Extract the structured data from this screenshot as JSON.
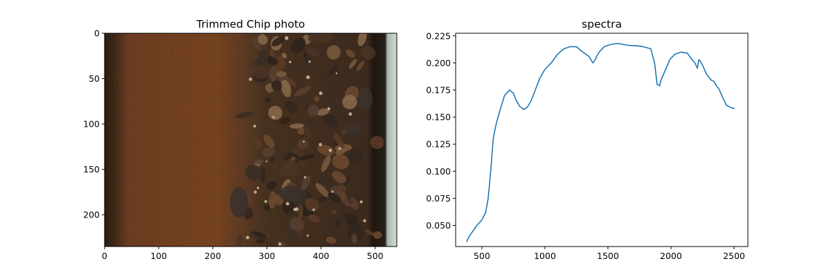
{
  "chart_data": [
    {
      "type": "image",
      "title": "Trimmed Chip photo",
      "xlim": [
        0,
        540
      ],
      "ylim": [
        235,
        0
      ],
      "xticks": [
        0,
        100,
        200,
        300,
        400,
        500
      ],
      "yticks": [
        0,
        50,
        100,
        150,
        200
      ],
      "xtick_labels": [
        "0",
        "100",
        "200",
        "300",
        "400",
        "500"
      ],
      "ytick_labels": [
        "0",
        "50",
        "100",
        "150",
        "200"
      ],
      "image_colors": {
        "left_fines": "#6b3a1f",
        "right_chips": "#3f2a1c",
        "frame_dark": "#2a1c12",
        "tray_edge": "#a8b8b0"
      }
    },
    {
      "type": "line",
      "title": "spectra",
      "xlim": [
        292,
        2610
      ],
      "ylim": [
        0.0305,
        0.2274
      ],
      "xticks": [
        500,
        1000,
        1500,
        2000,
        2500
      ],
      "yticks": [
        0.05,
        0.075,
        0.1,
        0.125,
        0.15,
        0.175,
        0.2,
        0.225
      ],
      "xtick_labels": [
        "500",
        "1000",
        "1500",
        "2000",
        "2500"
      ],
      "ytick_labels": [
        "0.050",
        "0.075",
        "0.100",
        "0.125",
        "0.150",
        "0.175",
        "0.200",
        "0.225"
      ],
      "series": [
        {
          "color": "#1f77b4",
          "x": [
            380,
            400,
            430,
            460,
            500,
            530,
            550,
            570,
            590,
            610,
            640,
            680,
            720,
            750,
            770,
            800,
            830,
            860,
            890,
            920,
            960,
            1000,
            1050,
            1100,
            1150,
            1200,
            1250,
            1300,
            1350,
            1380,
            1400,
            1410,
            1430,
            1470,
            1520,
            1580,
            1620,
            1680,
            1720,
            1780,
            1840,
            1870,
            1890,
            1910,
            1920,
            1950,
            1990,
            2030,
            2080,
            2130,
            2160,
            2190,
            2210,
            2220,
            2230,
            2250,
            2280,
            2320,
            2340,
            2360,
            2380,
            2410,
            2440,
            2470,
            2500
          ],
          "y": [
            0.035,
            0.04,
            0.045,
            0.05,
            0.055,
            0.062,
            0.075,
            0.1,
            0.13,
            0.142,
            0.155,
            0.17,
            0.175,
            0.172,
            0.166,
            0.16,
            0.157,
            0.159,
            0.165,
            0.174,
            0.186,
            0.194,
            0.2,
            0.208,
            0.213,
            0.215,
            0.215,
            0.21,
            0.206,
            0.2,
            0.203,
            0.206,
            0.21,
            0.215,
            0.217,
            0.218,
            0.217,
            0.216,
            0.216,
            0.215,
            0.213,
            0.2,
            0.18,
            0.179,
            0.184,
            0.192,
            0.203,
            0.208,
            0.21,
            0.209,
            0.204,
            0.2,
            0.195,
            0.203,
            0.202,
            0.198,
            0.19,
            0.184,
            0.183,
            0.179,
            0.176,
            0.168,
            0.161,
            0.159,
            0.158
          ]
        }
      ]
    }
  ]
}
